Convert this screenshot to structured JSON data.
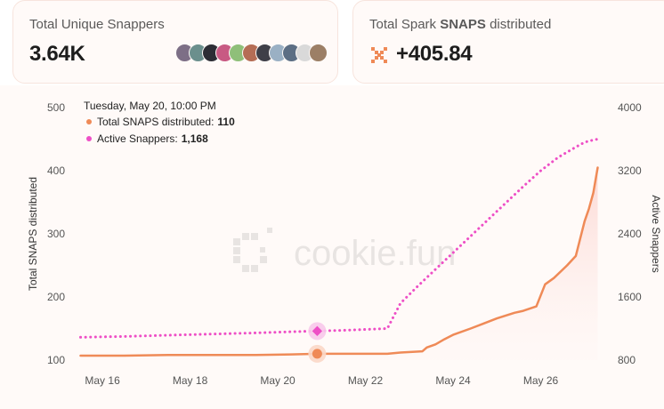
{
  "cards": {
    "unique_snappers": {
      "title": "Total Unique Snappers",
      "value": "3.64K"
    },
    "spark_snaps": {
      "title_prefix": "Total Spark ",
      "title_bold": "SNAPS",
      "title_suffix": " distributed",
      "value": "+405.84"
    }
  },
  "avatars": [
    {
      "color": "#7d6f86"
    },
    {
      "color": "#6b8f8d"
    },
    {
      "color": "#2d2d35"
    },
    {
      "color": "#c85a83"
    },
    {
      "color": "#8fbf79"
    },
    {
      "color": "#b56d55"
    },
    {
      "color": "#3f3f48"
    },
    {
      "color": "#9ab0c4"
    },
    {
      "color": "#5c6e84"
    },
    {
      "color": "#d9d9d9"
    },
    {
      "color": "#9c7f66"
    }
  ],
  "colors": {
    "orange_series": "#ef8a57",
    "pink_series": "#ee4fc6",
    "card_bg": "#fffaf8",
    "area_fill": "#fde7e4"
  },
  "watermark": "cookie.fun",
  "tooltip": {
    "date": "Tuesday, May 20, 10:00 PM",
    "rows": [
      {
        "label": "Total SNAPS distributed:",
        "value": "110",
        "color": "#ef8a57"
      },
      {
        "label": "Active Snappers:",
        "value": "1,168",
        "color": "#ee4fc6"
      }
    ]
  },
  "chart_data": {
    "type": "line",
    "x_tick_labels": [
      "May 16",
      "May 18",
      "May 20",
      "May 22",
      "May 24",
      "May 26"
    ],
    "x_ticks": [
      16,
      18,
      20,
      22,
      24,
      26
    ],
    "xlim": [
      15.45,
      27.35
    ],
    "y_left": {
      "label": "Total SNAPS distributed",
      "ticks": [
        100,
        200,
        300,
        400,
        500
      ],
      "ylim": [
        100,
        500
      ]
    },
    "y_right": {
      "label": "Active Snappers",
      "ticks": [
        800,
        1600,
        2400,
        3200,
        4000
      ],
      "ylim": [
        800,
        4000
      ]
    },
    "highlight_x": 20.9,
    "series": [
      {
        "name": "Total SNAPS distributed",
        "axis": "left",
        "style": "solid",
        "area": true,
        "x": [
          15.5,
          16.5,
          17.5,
          18.5,
          19.5,
          20.3,
          20.9,
          21.6,
          22.5,
          22.8,
          23.3,
          23.4,
          23.6,
          23.8,
          24.0,
          24.4,
          24.7,
          25.0,
          25.4,
          25.6,
          25.9,
          26.1,
          26.3,
          26.6,
          26.8,
          27.0,
          27.1,
          27.2,
          27.3
        ],
        "values": [
          107,
          107,
          108,
          108,
          108,
          109,
          110,
          110,
          110,
          112,
          114,
          120,
          125,
          133,
          140,
          150,
          158,
          166,
          175,
          178,
          185,
          220,
          230,
          250,
          265,
          320,
          340,
          365,
          405
        ]
      },
      {
        "name": "Active Snappers",
        "axis": "right",
        "style": "dotted",
        "area": false,
        "x": [
          15.5,
          16.5,
          17.5,
          18.5,
          19.5,
          20.3,
          20.9,
          21.6,
          22.5,
          22.8,
          23.2,
          23.6,
          24.0,
          24.4,
          24.8,
          25.2,
          25.6,
          26.0,
          26.4,
          26.8,
          27.0,
          27.2,
          27.3
        ],
        "values": [
          1090,
          1100,
          1115,
          1130,
          1145,
          1160,
          1168,
          1180,
          1200,
          1520,
          1740,
          1950,
          2160,
          2370,
          2580,
          2790,
          3000,
          3200,
          3370,
          3500,
          3560,
          3590,
          3600
        ]
      }
    ]
  }
}
